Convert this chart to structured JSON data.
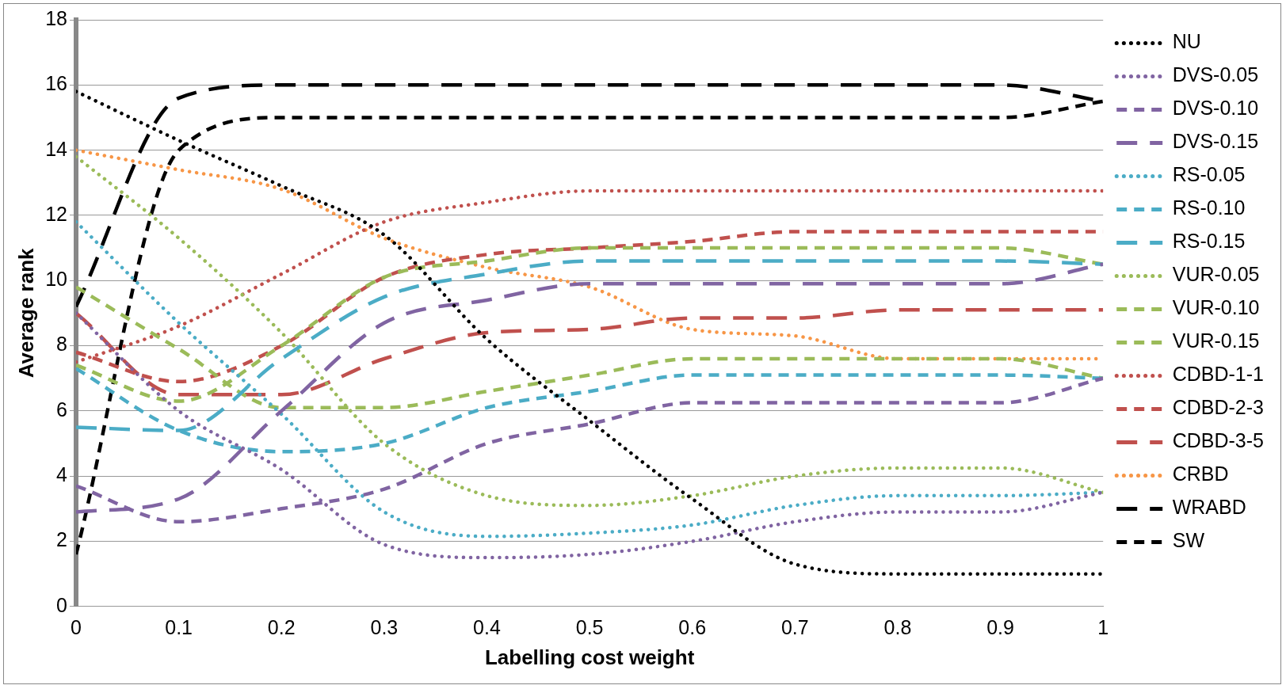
{
  "chart_data": {
    "type": "line",
    "xlabel": "Labelling cost weight",
    "ylabel": "Average rank",
    "x": [
      0,
      0.1,
      0.2,
      0.3,
      0.4,
      0.5,
      0.6,
      0.7,
      0.8,
      0.9,
      1
    ],
    "xlim": [
      0,
      1
    ],
    "xticks": [
      0,
      {
        "value": 0.1,
        "label": "0.1"
      },
      {
        "value": 0.2,
        "label": "0.2"
      },
      {
        "value": 0.3,
        "label": "0.3"
      },
      {
        "value": 0.4,
        "label": "0.4"
      },
      {
        "value": 0.5,
        "label": "0.5"
      },
      {
        "value": 0.6,
        "label": "0.6"
      },
      {
        "value": 0.7,
        "label": "0.7"
      },
      {
        "value": 0.8,
        "label": "0.8"
      },
      {
        "value": 0.9,
        "label": "0.9"
      },
      1
    ],
    "ylim": [
      0,
      18
    ],
    "yticks": [
      0,
      2,
      4,
      6,
      8,
      10,
      12,
      14,
      16,
      18
    ],
    "grid": "y",
    "legend": "right",
    "marker": "none",
    "series": [
      {
        "name": "NU",
        "color": "#000000",
        "line_style": "dotted",
        "values": [
          15.8,
          14.3,
          12.9,
          11.4,
          8.2,
          5.7,
          3.3,
          1.3,
          1.0,
          1.0,
          1.0
        ]
      },
      {
        "name": "DVS-0.05",
        "color": "#8064a2",
        "line_style": "dotted",
        "values": [
          9.0,
          6.0,
          4.2,
          1.9,
          1.5,
          1.6,
          2.0,
          2.6,
          2.9,
          2.9,
          3.5
        ]
      },
      {
        "name": "DVS-0.10",
        "color": "#8064a2",
        "line_style": "dashed",
        "values": [
          3.7,
          2.6,
          3.0,
          3.6,
          5.0,
          5.6,
          6.25,
          6.25,
          6.25,
          6.25,
          7.0
        ]
      },
      {
        "name": "DVS-0.15",
        "color": "#8064a2",
        "line_style": "long-dashed",
        "values": [
          2.9,
          3.3,
          6.0,
          8.7,
          9.4,
          9.9,
          9.9,
          9.9,
          9.9,
          9.9,
          10.5
        ]
      },
      {
        "name": "RS-0.05",
        "color": "#4bacc6",
        "line_style": "dotted",
        "values": [
          11.8,
          8.7,
          5.9,
          2.9,
          2.15,
          2.25,
          2.5,
          3.1,
          3.4,
          3.4,
          3.5
        ]
      },
      {
        "name": "RS-0.10",
        "color": "#4bacc6",
        "line_style": "dashed",
        "values": [
          7.3,
          5.4,
          4.75,
          5.0,
          6.1,
          6.6,
          7.1,
          7.1,
          7.1,
          7.1,
          7.0
        ]
      },
      {
        "name": "RS-0.15",
        "color": "#4bacc6",
        "line_style": "long-dashed",
        "values": [
          5.5,
          5.4,
          7.6,
          9.5,
          10.2,
          10.6,
          10.6,
          10.6,
          10.6,
          10.6,
          10.5
        ]
      },
      {
        "name": "VUR-0.05",
        "color": "#9bbb59",
        "line_style": "dotted",
        "values": [
          13.8,
          11.3,
          8.4,
          5.0,
          3.4,
          3.1,
          3.4,
          4.0,
          4.25,
          4.25,
          3.5
        ]
      },
      {
        "name": "VUR-0.10",
        "color": "#9bbb59",
        "line_style": "dashed",
        "values": [
          7.4,
          6.3,
          8.0,
          10.1,
          10.6,
          11.0,
          11.0,
          11.0,
          11.0,
          11.0,
          10.5
        ]
      },
      {
        "name": "VUR-0.15",
        "color": "#9bbb59",
        "line_style": "dashed",
        "values": [
          9.8,
          7.9,
          6.1,
          6.1,
          6.6,
          7.1,
          7.6,
          7.6,
          7.6,
          7.6,
          7.0
        ]
      },
      {
        "name": "CDBD-1-1",
        "color": "#c0504d",
        "line_style": "dotted",
        "values": [
          7.5,
          8.6,
          10.2,
          11.8,
          12.4,
          12.75,
          12.75,
          12.75,
          12.75,
          12.75,
          12.75
        ]
      },
      {
        "name": "CDBD-2-3",
        "color": "#c0504d",
        "line_style": "dashed",
        "values": [
          7.8,
          6.9,
          8.0,
          10.1,
          10.8,
          11.0,
          11.2,
          11.5,
          11.5,
          11.5,
          11.5
        ]
      },
      {
        "name": "CDBD-3-5",
        "color": "#c0504d",
        "line_style": "long-dashed",
        "values": [
          9.0,
          6.5,
          6.5,
          7.6,
          8.4,
          8.5,
          8.85,
          8.85,
          9.1,
          9.1,
          9.1
        ]
      },
      {
        "name": "CRBD",
        "color": "#f79646",
        "line_style": "dotted",
        "values": [
          14.0,
          13.4,
          12.8,
          11.3,
          10.4,
          9.8,
          8.5,
          8.3,
          7.6,
          7.6,
          7.6
        ]
      },
      {
        "name": "WRABD",
        "color": "#000000",
        "line_style": "long-dashed",
        "values": [
          9.2,
          15.6,
          16.0,
          16.0,
          16.0,
          16.0,
          16.0,
          16.0,
          16.0,
          16.0,
          15.5
        ]
      },
      {
        "name": "SW",
        "color": "#000000",
        "line_style": "dashed",
        "values": [
          1.6,
          14.0,
          15.0,
          15.0,
          15.0,
          15.0,
          15.0,
          15.0,
          15.0,
          15.0,
          15.5
        ]
      }
    ]
  }
}
